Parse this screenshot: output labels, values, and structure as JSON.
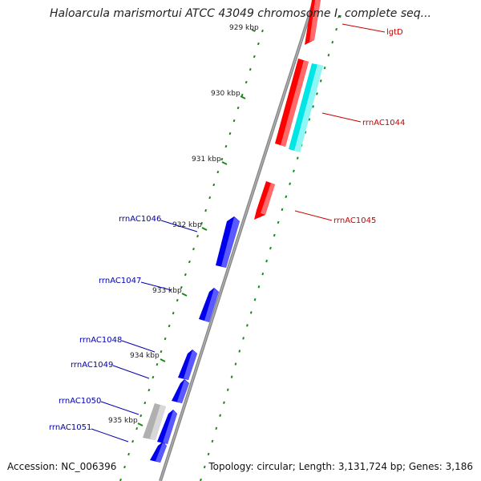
{
  "title": "Haloarcula marismortui ATCC 43049 chromosome I, complete seq...",
  "accession": "Accession: NC_006396",
  "summary": "Topology: circular; Length: 3,131,724 bp; Genes: 3,186",
  "colors": {
    "backbone": "#888888",
    "tick_dot": "#1a8a1a",
    "forward_label": "#cc0000",
    "reverse_label": "#0000aa",
    "red_feature": "#ff0000",
    "cyan_feature": "#00e5e5",
    "blue_feature": "#0000ee",
    "gray_feature": "#b0b0b0"
  },
  "ticks": [
    "929 kbp",
    "930 kbp",
    "931 kbp",
    "932 kbp",
    "933 kbp",
    "934 kbp",
    "935 kbp"
  ],
  "forward_labels": [
    "lgtD",
    "rrnAC1044",
    "rrnAC1045"
  ],
  "reverse_labels": [
    "rrnAC1046",
    "rrnAC1047",
    "rrnAC1048",
    "rrnAC1049",
    "rrnAC1050",
    "rrnAC1051"
  ]
}
